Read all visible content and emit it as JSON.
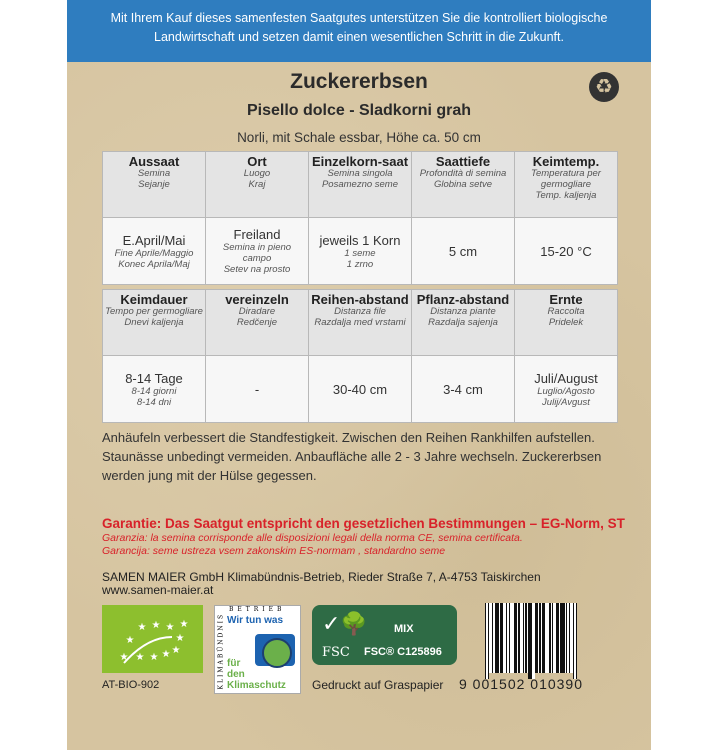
{
  "banner": {
    "text": "Mit Ihrem Kauf dieses samenfesten Saatgutes unterstützen Sie die kontrolliert biologische Landwirtschaft und setzen damit einen wesentlichen Schritt in die Zukunft."
  },
  "product": {
    "title": "Zuckererbsen",
    "subtitle": "Pisello dolce - Sladkorni grah",
    "description": "Norli, mit Schale essbar, Höhe ca. 50 cm"
  },
  "table1": {
    "headers": [
      {
        "main": "Aussaat",
        "sub1": "Semina",
        "sub2": "Sejanje"
      },
      {
        "main": "Ort",
        "sub1": "Luogo",
        "sub2": "Kraj"
      },
      {
        "main": "Einzelkorn-saat",
        "sub1": "Semina singola",
        "sub2": "Posamezno seme"
      },
      {
        "main": "Saattiefe",
        "sub1": "Profondità di semina",
        "sub2": "Globina setve"
      },
      {
        "main": "Keimtemp.",
        "sub1": "Temperatura per germogliare",
        "sub2": "Temp. kaljenja"
      }
    ],
    "values": [
      {
        "main": "E.April/Mai",
        "sub1": "Fine Aprile/Maggio",
        "sub2": "Konec Aprila/Maj"
      },
      {
        "main": "Freiland",
        "sub1": "Semina in pieno campo",
        "sub2": "Setev na prosto"
      },
      {
        "main": "jeweils 1 Korn",
        "sub1": "1 seme",
        "sub2": "1 zrno"
      },
      {
        "main": "5 cm",
        "sub1": "",
        "sub2": ""
      },
      {
        "main": "15-20 °C",
        "sub1": "",
        "sub2": ""
      }
    ]
  },
  "table2": {
    "headers": [
      {
        "main": "Keimdauer",
        "sub1": "Tempo per germogliare",
        "sub2": "Dnevi kaljenja"
      },
      {
        "main": "vereinzeln",
        "sub1": "Diradare",
        "sub2": "Redčenje"
      },
      {
        "main": "Reihen-abstand",
        "sub1": "Distanza file",
        "sub2": "Razdalja med vrstami"
      },
      {
        "main": "Pflanz-abstand",
        "sub1": "Distanza piante",
        "sub2": "Razdalja sajenja"
      },
      {
        "main": "Ernte",
        "sub1": "Raccolta",
        "sub2": "Pridelek"
      }
    ],
    "values": [
      {
        "main": "8-14 Tage",
        "sub1": "8-14 giorni",
        "sub2": "8-14 dni"
      },
      {
        "main": "-",
        "sub1": "",
        "sub2": ""
      },
      {
        "main": "30-40 cm",
        "sub1": "",
        "sub2": ""
      },
      {
        "main": "3-4 cm",
        "sub1": "",
        "sub2": ""
      },
      {
        "main": "Juli/August",
        "sub1": "Luglio/Agosto",
        "sub2": "Julij/Avgust"
      }
    ]
  },
  "instructions": "Anhäufeln verbessert die Standfestigkeit. Zwischen den Reihen Rankhilfen aufstellen. Staunässe unbedingt vermeiden. Anbaufläche alle 2 - 3 Jahre wechseln. Zuckererbsen werden jung mit der Hülse gegessen.",
  "guarantee": {
    "de": "Garantie: Das Saatgut entspricht den gesetzlichen Bestimmungen – EG-Norm, ST",
    "it": "Garanzia: la semina corrisponde alle disposizioni legali della norma CE, semina certificata.",
    "sl": "Garancija: seme ustreza vsem zakonskim ES-normam , standardno seme"
  },
  "company": {
    "line1": "SAMEN MAIER GmbH Klimabündnis-Betrieb, Rieder Straße 7, A-4753 Taiskirchen",
    "website": "www.samen-maier.at"
  },
  "logos": {
    "eu_bio_code": "AT-BIO-902",
    "klima_top": "BETRIEB",
    "klima_side": "KLIMABÜNDNIS",
    "klima_line1": "Wir tun was",
    "klima_line2": "für",
    "klima_line3": "den",
    "klima_line4": "Klimaschutz",
    "fsc_mix": "MIX",
    "fsc_brand": "FSC",
    "fsc_code": "FSC® C125896",
    "paper": "Gedruckt auf Graspapier"
  },
  "barcode": {
    "digits": "9 001502 010390"
  },
  "colors": {
    "banner": "#2f7dbf",
    "guarantee": "#d8222a",
    "eu_leaf": "#8dbf2e",
    "fsc": "#2e6b45"
  }
}
